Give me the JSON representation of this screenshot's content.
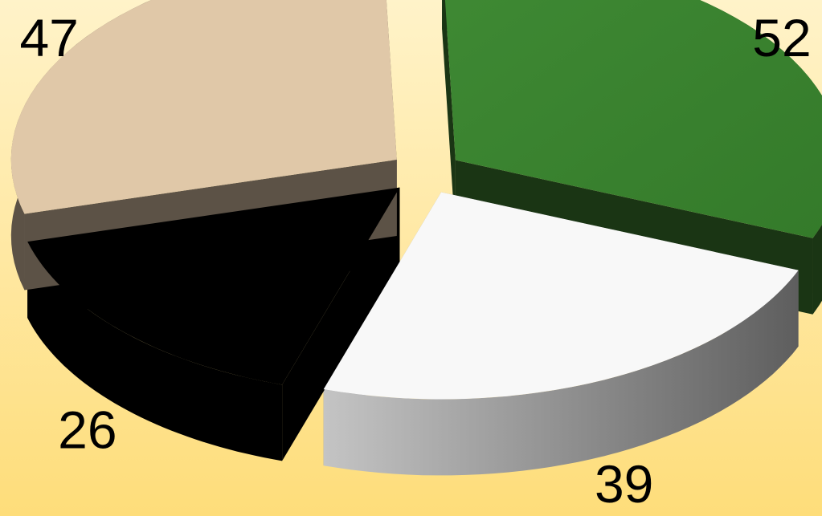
{
  "chart_data": {
    "type": "pie",
    "title": "",
    "style": "3d-exploded",
    "legend": "none",
    "slices": [
      {
        "value": 52,
        "label": "52",
        "color": "#3a8230",
        "side_color": "#1a3514"
      },
      {
        "value": 39,
        "label": "39",
        "color": "#f8f8f8",
        "side_color": "#8c8c8c"
      },
      {
        "value": 26,
        "label": "26",
        "color": "#000000",
        "side_color": "#000000"
      },
      {
        "value": 47,
        "label": "47",
        "color": "#e0c8a8",
        "side_color": "#5c5246"
      }
    ]
  },
  "colors": {
    "background_top": "#fff3c9",
    "background_bottom": "#fedd7a"
  }
}
